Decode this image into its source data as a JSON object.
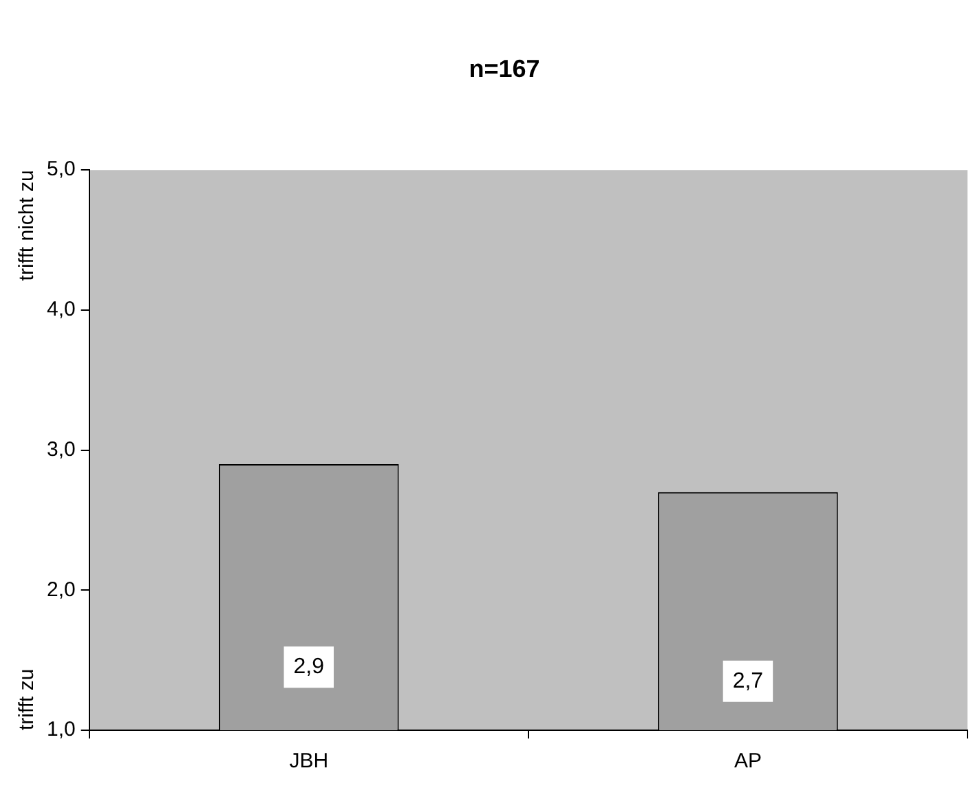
{
  "chart_data": {
    "type": "bar",
    "title": "n=167",
    "categories": [
      "JBH",
      "AP"
    ],
    "values": [
      2.9,
      2.7
    ],
    "color": "#a0a0a0",
    "value_labels": [
      "2,9",
      "2,7"
    ],
    "ylim": [
      1,
      5
    ],
    "yticks": [
      {
        "value": 1,
        "label": "1,0"
      },
      {
        "value": 2,
        "label": "2,0"
      },
      {
        "value": 3,
        "label": "3,0"
      },
      {
        "value": 4,
        "label": "4,0"
      },
      {
        "value": 5,
        "label": "5,0"
      }
    ],
    "annotations": [
      "trifft nicht zu",
      "trifft zu"
    ],
    "grid": false,
    "legend": false
  }
}
